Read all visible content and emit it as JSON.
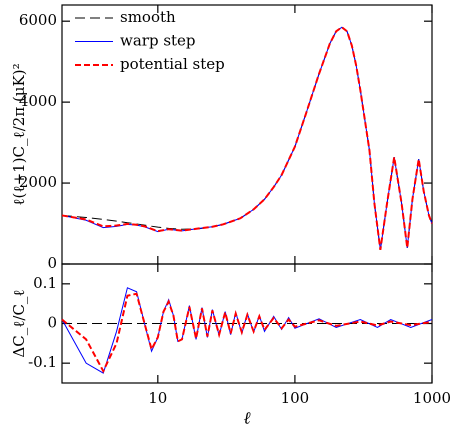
{
  "chart_data": [
    {
      "type": "line",
      "ylabel": "ℓ(ℓ+1)C_ℓ/2π (μK)²",
      "x": [
        2,
        3,
        4,
        5,
        6,
        7,
        8,
        10,
        12,
        15,
        20,
        25,
        30,
        40,
        50,
        60,
        70,
        80,
        100,
        120,
        150,
        180,
        200,
        220,
        240,
        260,
        280,
        300,
        350,
        380,
        420,
        470,
        530,
        600,
        660,
        720,
        800,
        870,
        950,
        1000
      ],
      "xlim": [
        2,
        1000
      ],
      "xscale": "log",
      "ylim": [
        0,
        6400
      ],
      "yticks": [
        0,
        2000,
        4000,
        6000
      ],
      "legend": "upper left",
      "series": [
        {
          "name": "smooth",
          "color": "#000000",
          "dashed": true,
          "values": [
            1200,
            1150,
            1100,
            1060,
            1020,
            990,
            960,
            910,
            880,
            860,
            870,
            920,
            980,
            1130,
            1350,
            1600,
            1900,
            2200,
            2900,
            3700,
            4700,
            5450,
            5750,
            5850,
            5750,
            5400,
            4900,
            4300,
            2800,
            1500,
            350,
            1500,
            2640,
            1500,
            400,
            1600,
            2590,
            1800,
            1200,
            1000
          ]
        },
        {
          "name": "warp step",
          "color": "#0000ff",
          "dashed": false,
          "values": [
            1200,
            1080,
            900,
            930,
            980,
            960,
            920,
            800,
            860,
            820,
            880,
            920,
            980,
            1130,
            1350,
            1600,
            1900,
            2200,
            2900,
            3700,
            4700,
            5450,
            5750,
            5850,
            5750,
            5400,
            4900,
            4300,
            2800,
            1500,
            350,
            1500,
            2640,
            1500,
            400,
            1600,
            2590,
            1800,
            1200,
            1000
          ]
        },
        {
          "name": "potential step",
          "color": "#ff0000",
          "dashed": true,
          "values": [
            1200,
            1100,
            930,
            950,
            990,
            970,
            930,
            810,
            860,
            825,
            880,
            920,
            980,
            1130,
            1350,
            1600,
            1900,
            2200,
            2900,
            3700,
            4700,
            5450,
            5750,
            5850,
            5750,
            5400,
            4900,
            4300,
            2800,
            1500,
            350,
            1500,
            2640,
            1500,
            400,
            1600,
            2590,
            1800,
            1200,
            1000
          ]
        }
      ]
    },
    {
      "type": "line",
      "ylabel": "ΔC_ℓ/C_ℓ",
      "xlabel": "ℓ",
      "x": [
        2,
        3,
        4,
        5,
        6,
        7,
        8,
        9,
        10,
        11,
        12,
        13,
        14,
        15,
        17,
        19,
        21,
        23,
        25,
        28,
        31,
        34,
        37,
        41,
        45,
        50,
        55,
        60,
        70,
        80,
        90,
        100,
        150,
        200,
        300,
        400,
        500,
        700,
        1000
      ],
      "xlim": [
        2,
        1000
      ],
      "xscale": "log",
      "xticks": [
        10,
        100,
        1000
      ],
      "ylim": [
        -0.15,
        0.15
      ],
      "yticks": [
        -0.1,
        0,
        0.1
      ],
      "series": [
        {
          "name": "smooth",
          "color": "#000000",
          "dashed": true,
          "values": [
            0,
            0,
            0,
            0,
            0,
            0,
            0,
            0,
            0,
            0,
            0,
            0,
            0,
            0,
            0,
            0,
            0,
            0,
            0,
            0,
            0,
            0,
            0,
            0,
            0,
            0,
            0,
            0,
            0,
            0,
            0,
            0,
            0,
            0,
            0,
            0,
            0,
            0,
            0
          ]
        },
        {
          "name": "warp step",
          "color": "#0000ff",
          "dashed": false,
          "values": [
            0.01,
            -0.1,
            -0.125,
            -0.02,
            0.09,
            0.08,
            0,
            -0.07,
            -0.035,
            0.03,
            0.06,
            0.02,
            -0.045,
            -0.04,
            0.045,
            -0.04,
            0.04,
            -0.035,
            0.035,
            -0.03,
            0.03,
            -0.028,
            0.028,
            -0.025,
            0.025,
            -0.022,
            0.02,
            -0.02,
            0.018,
            -0.015,
            0.015,
            -0.012,
            0.012,
            -0.01,
            0.01,
            -0.01,
            0.01,
            -0.01,
            0.01
          ]
        },
        {
          "name": "potential step",
          "color": "#ff0000",
          "dashed": true,
          "values": [
            0.01,
            -0.04,
            -0.12,
            -0.05,
            0.07,
            0.075,
            0,
            -0.065,
            -0.035,
            0.03,
            0.055,
            0.02,
            -0.045,
            -0.04,
            0.042,
            -0.038,
            0.038,
            -0.033,
            0.033,
            -0.028,
            0.028,
            -0.025,
            0.025,
            -0.022,
            0.022,
            -0.02,
            0.018,
            -0.016,
            0.014,
            -0.012,
            0.01,
            -0.008,
            0.008,
            -0.006,
            0.005,
            -0.005,
            0.005,
            -0.004,
            0.004
          ]
        }
      ]
    }
  ]
}
